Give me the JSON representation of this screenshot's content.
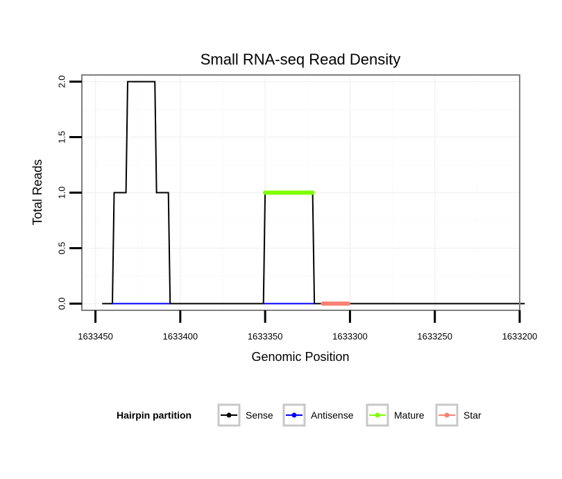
{
  "chart_data": {
    "type": "line",
    "title": "Small RNA-seq Read Density",
    "xlabel": "Genomic Position",
    "ylabel": "Total Reads",
    "x_reversed": true,
    "xlim": [
      1633458,
      1633200
    ],
    "ylim": [
      -0.06,
      2.06
    ],
    "x_ticks": [
      1633450,
      1633400,
      1633350,
      1633300,
      1633250,
      1633200
    ],
    "x_tick_labels": [
      "1633450",
      "1633400",
      "1633350",
      "1633300",
      "1633250",
      "1633200"
    ],
    "y_ticks": [
      0.0,
      0.5,
      1.0,
      1.5,
      2.0
    ],
    "y_tick_labels": [
      "0.0",
      "0.5",
      "1.0",
      "1.5",
      "2.0"
    ],
    "grid": true,
    "legend_position": "bottom",
    "legend_title": "Hairpin partition",
    "series": [
      {
        "name": "Sense",
        "color": "#000000",
        "x": [
          1633446,
          1633440,
          1633439,
          1633432,
          1633431,
          1633415,
          1633414,
          1633407,
          1633406,
          1633351,
          1633350,
          1633322,
          1633321,
          1633197
        ],
        "values": [
          0,
          0,
          1,
          1,
          2,
          2,
          1,
          1,
          0,
          0,
          1,
          1,
          0,
          0
        ]
      },
      {
        "name": "Antisense",
        "color": "#0000ff",
        "x": [
          1633440,
          1633406
        ],
        "values": [
          0,
          0
        ]
      },
      {
        "name": "Antisense",
        "color": "#0000ff",
        "x": [
          1633351,
          1633321
        ],
        "values": [
          0,
          0
        ]
      },
      {
        "name": "Mature",
        "color": "#7fff00",
        "x": [
          1633350,
          1633322
        ],
        "values": [
          1,
          1
        ]
      },
      {
        "name": "Star",
        "color": "#fa8072",
        "x": [
          1633316,
          1633301
        ],
        "values": [
          0,
          0
        ]
      }
    ],
    "legend": [
      {
        "label": "Sense",
        "color": "#000000"
      },
      {
        "label": "Antisense",
        "color": "#0000ff"
      },
      {
        "label": "Mature",
        "color": "#7fff00"
      },
      {
        "label": "Star",
        "color": "#fa8072"
      }
    ]
  }
}
